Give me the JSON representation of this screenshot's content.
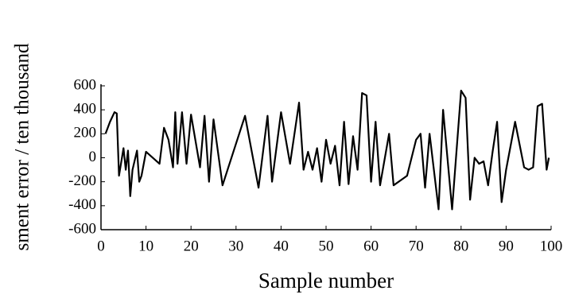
{
  "chart_data": {
    "type": "line",
    "xlabel": "Sample number",
    "ylabel": "sment error / ten thousand",
    "x": [
      1,
      2,
      3,
      3.5,
      4,
      5,
      5.5,
      6,
      6.5,
      7,
      8,
      8.5,
      9,
      10,
      13,
      14,
      15,
      16,
      16.5,
      17,
      18,
      19,
      20,
      22,
      23,
      24,
      25,
      27,
      32,
      35,
      37,
      38,
      40,
      42,
      44,
      45,
      46,
      47,
      48,
      49,
      50,
      51,
      52,
      53,
      54,
      55,
      56,
      57,
      58,
      59,
      60,
      61,
      62,
      64,
      65,
      68,
      70,
      71,
      72,
      73,
      75,
      76,
      78,
      80,
      81,
      82,
      83,
      84,
      85,
      86,
      87,
      88,
      89,
      90,
      92,
      94,
      95,
      96,
      97,
      98,
      99,
      99.5
    ],
    "series": [
      {
        "color": "#000000",
        "values": [
          200,
          300,
          380,
          370,
          -150,
          80,
          -100,
          60,
          -320,
          -100,
          60,
          -200,
          -150,
          50,
          -50,
          250,
          150,
          -80,
          380,
          -50,
          380,
          -50,
          360,
          -80,
          350,
          -200,
          320,
          -230,
          350,
          -250,
          350,
          -200,
          380,
          -50,
          460,
          -100,
          50,
          -100,
          80,
          -200,
          150,
          -50,
          100,
          -230,
          300,
          -220,
          180,
          -100,
          540,
          520,
          -200,
          300,
          -230,
          200,
          -230,
          -150,
          150,
          200,
          -250,
          200,
          -430,
          400,
          -430,
          560,
          500,
          -350,
          0,
          -50,
          -30,
          -230,
          50,
          300,
          -370,
          -100,
          300,
          -80,
          -100,
          -80,
          430,
          450,
          -100,
          0
        ]
      }
    ],
    "xlim": [
      0,
      100
    ],
    "xticks": [
      0,
      10,
      20,
      30,
      40,
      50,
      60,
      70,
      80,
      90,
      100
    ],
    "ylim": [
      -600,
      600
    ],
    "yticks": [
      -600,
      -400,
      -200,
      0,
      200,
      400,
      600
    ],
    "grid": false
  }
}
